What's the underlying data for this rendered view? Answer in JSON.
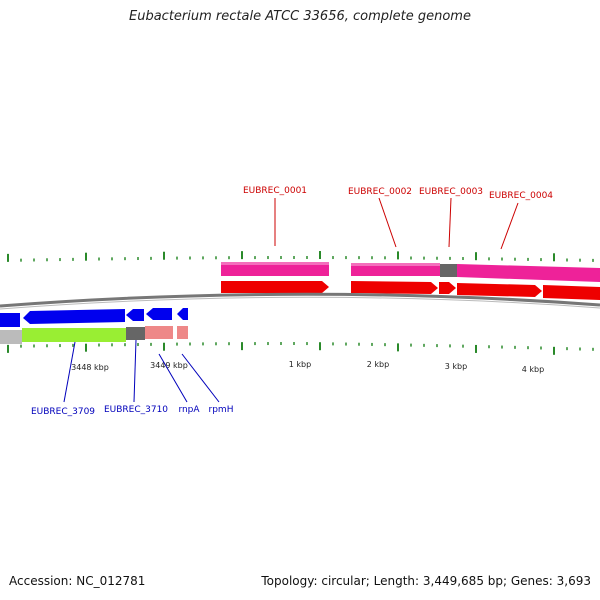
{
  "title": "Eubacterium rectale ATCC 33656, complete genome",
  "footer": {
    "accession": "Accession: NC_012781",
    "summary": "Topology: circular; Length: 3,449,685 bp; Genes: 3,693"
  },
  "scale_labels": [
    "3448 kbp",
    "3449 kbp",
    "1 kbp",
    "2 kbp",
    "3 kbp",
    "4 kbp"
  ],
  "gene_labels": {
    "top": [
      "EUBREC_0001",
      "EUBREC_0002",
      "EUBREC_0003",
      "EUBREC_0004"
    ],
    "bottom": [
      "EUBREC_3709",
      "EUBREC_3710",
      "rnpA",
      "rpmH"
    ]
  },
  "colors": {
    "top_label": "#cc0000",
    "bottom_label": "#0000bb",
    "gene_track_top": "#ee2299",
    "cds_track_top": "#ee0000",
    "gene_track_bottom_blue": "#0000ee",
    "gene_track_bottom_green": "#99ee33",
    "gene_track_bottom_pink": "#ee8888",
    "rna_gray": "#666666",
    "backbone": "#777777",
    "tick": "#2a8a2a"
  }
}
